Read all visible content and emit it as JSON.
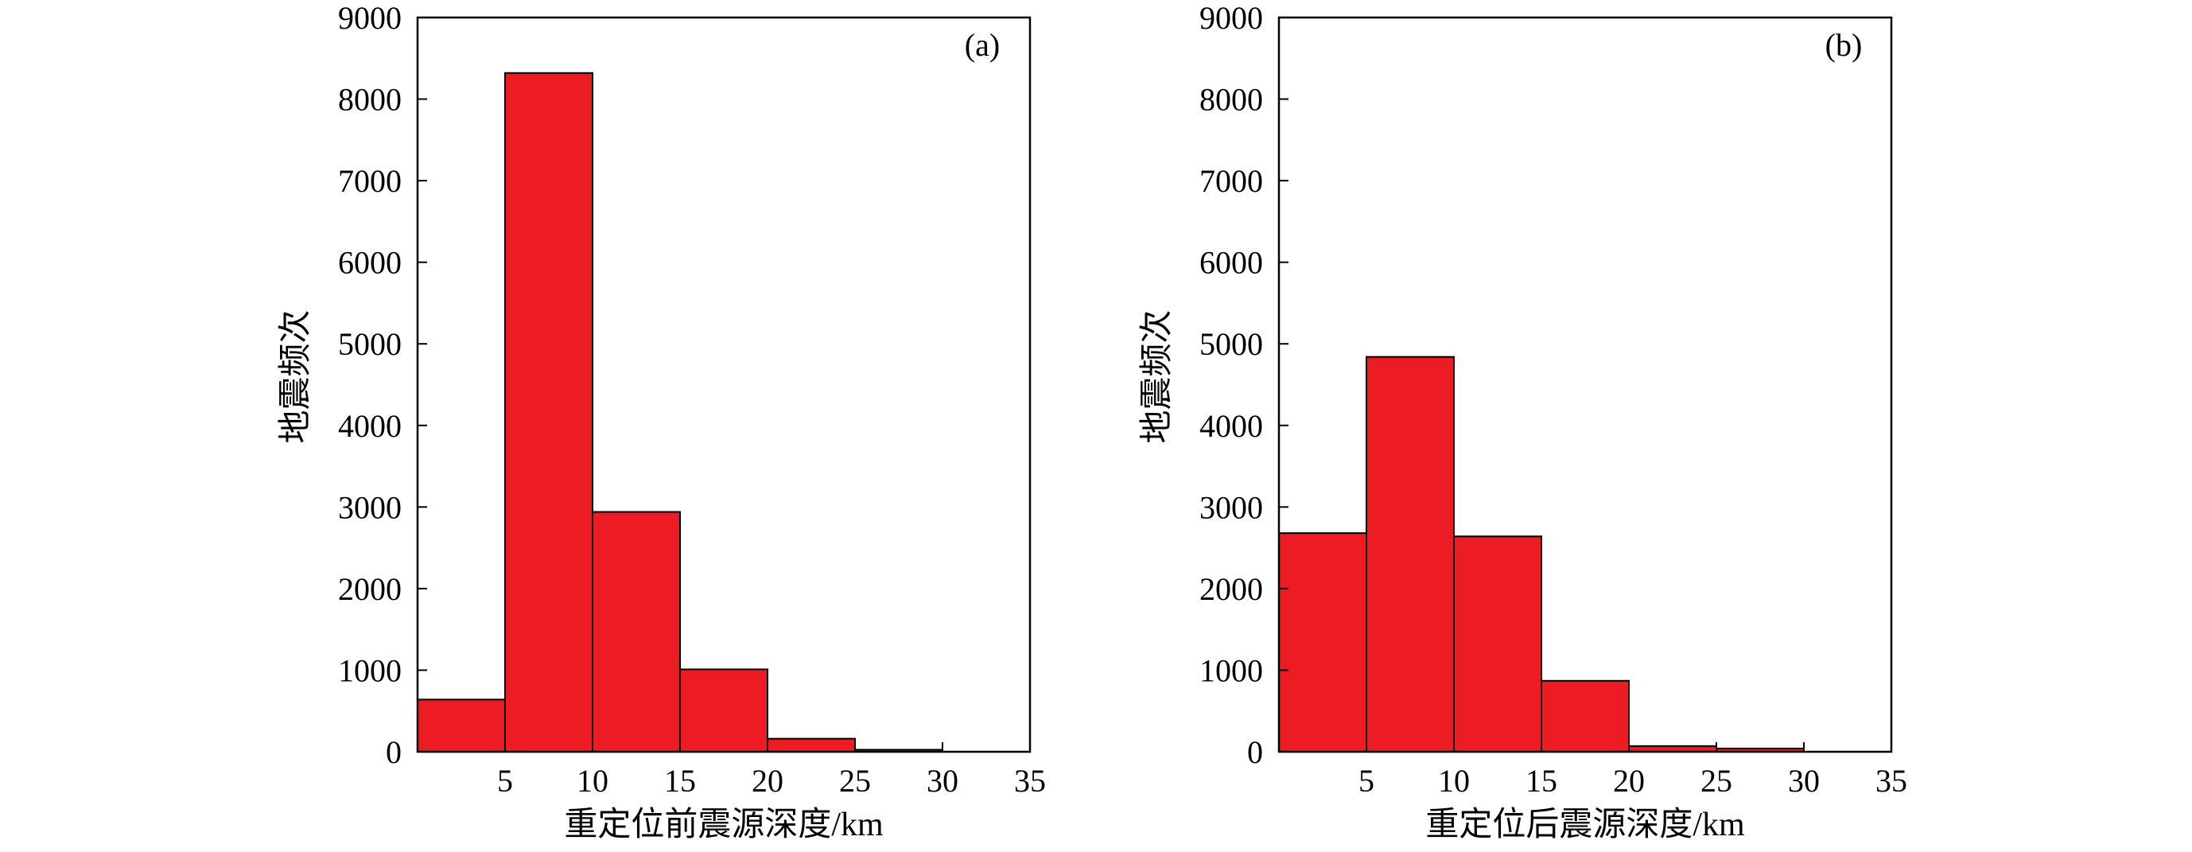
{
  "chart_data": [
    {
      "type": "bar",
      "panel_label": "(a)",
      "bin_edges": [
        0,
        5,
        10,
        15,
        20,
        25,
        30
      ],
      "values": [
        640,
        8320,
        2940,
        1010,
        160,
        25
      ],
      "bar_color": "#ED1C24",
      "x_ticks": [
        5,
        10,
        15,
        20,
        25,
        30,
        35
      ],
      "y_ticks": [
        0,
        1000,
        2000,
        3000,
        4000,
        5000,
        6000,
        7000,
        8000,
        9000
      ],
      "xlabel": "重定位前震源深度/km",
      "ylabel": "地震频次",
      "xlim": [
        0,
        35
      ],
      "ylim": [
        0,
        9000
      ],
      "grid": false
    },
    {
      "type": "bar",
      "panel_label": "(b)",
      "bin_edges": [
        0,
        5,
        10,
        15,
        20,
        25,
        30
      ],
      "values": [
        2680,
        4840,
        2640,
        870,
        70,
        40
      ],
      "bar_color": "#ED1C24",
      "x_ticks": [
        5,
        10,
        15,
        20,
        25,
        30,
        35
      ],
      "y_ticks": [
        0,
        1000,
        2000,
        3000,
        4000,
        5000,
        6000,
        7000,
        8000,
        9000
      ],
      "xlabel": "重定位后震源深度/km",
      "ylabel": "地震频次",
      "xlim": [
        0,
        35
      ],
      "ylim": [
        0,
        9000
      ],
      "grid": false
    }
  ]
}
